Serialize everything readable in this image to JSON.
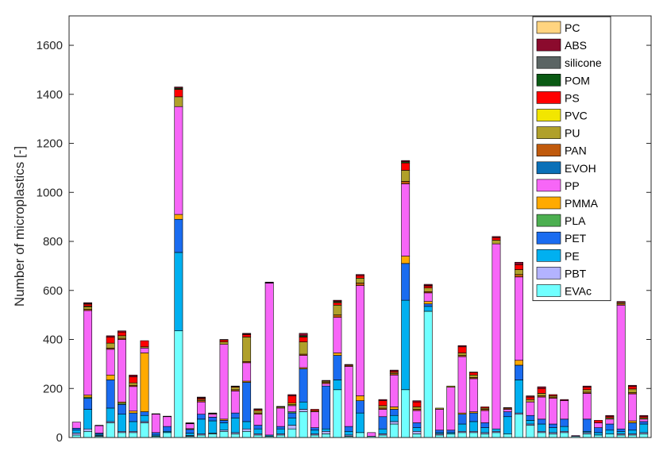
{
  "chart_data": {
    "type": "bar",
    "stacked": true,
    "xlabel": "",
    "ylabel": "Number of microplastics [-]",
    "ylim": [
      0,
      1720
    ],
    "yticks": [
      0,
      200,
      400,
      600,
      800,
      1000,
      1200,
      1400,
      1600
    ],
    "grid": false,
    "legend_position": "top-right",
    "stack_order": [
      "EVAc",
      "PBT",
      "PE",
      "PET",
      "PLA",
      "PMMA",
      "PP",
      "EVOH",
      "PAN",
      "PU",
      "PVC",
      "PS",
      "POM",
      "silicone",
      "ABS",
      "PC"
    ],
    "legend_order": [
      "PC",
      "ABS",
      "silicone",
      "POM",
      "PS",
      "PVC",
      "PU",
      "PAN",
      "EVOH",
      "PP",
      "PMMA",
      "PLA",
      "PET",
      "PE",
      "PBT",
      "EVAc"
    ],
    "colors": {
      "PC": "#ffd480",
      "ABS": "#8b0a2d",
      "silicone": "#5a6463",
      "POM": "#0a5a14",
      "PS": "#ff0000",
      "PVC": "#f2e600",
      "PU": "#b0a02a",
      "PAN": "#c05a0c",
      "EVOH": "#0a70b8",
      "PP": "#f766f7",
      "PMMA": "#ffaa00",
      "PLA": "#4caf50",
      "PET": "#1a6cf0",
      "PE": "#00b0f0",
      "PBT": "#b3b3ff",
      "EVAc": "#70ffff"
    },
    "bars": [
      {
        "EVAc": 10,
        "PBT": 8,
        "PE": 12,
        "PET": 8,
        "PP": 25
      },
      {
        "EVAc": 25,
        "PBT": 10,
        "PE": 80,
        "PET": 45,
        "PLA": 5,
        "PMMA": 8,
        "PP": 345,
        "PAN": 5,
        "PU": 10,
        "PVC": 3,
        "PS": 8,
        "silicone": 3,
        "ABS": 3
      },
      {
        "EVAc": 5,
        "PBT": 3,
        "PE": 5,
        "PET": 5,
        "PP": 30,
        "PS": 2
      },
      {
        "EVAc": 60,
        "PBT": 5,
        "PE": 55,
        "PET": 115,
        "PMMA": 20,
        "PP": 105,
        "PAN": 5,
        "PU": 20,
        "PS": 25,
        "ABS": 5
      },
      {
        "EVAc": 20,
        "PBT": 5,
        "PE": 70,
        "PET": 40,
        "PLA": 5,
        "PMMA": 5,
        "PP": 255,
        "PAN": 5,
        "PU": 10,
        "PS": 15,
        "ABS": 5
      },
      {
        "EVAc": 20,
        "PBT": 5,
        "PE": 40,
        "PET": 35,
        "PMMA": 8,
        "PP": 100,
        "PAN": 5,
        "PU": 10,
        "PS": 25,
        "ABS": 7
      },
      {
        "EVAc": 60,
        "PBT": 5,
        "PE": 25,
        "PET": 15,
        "PMMA": 240,
        "PP": 20,
        "PU": 5,
        "PS": 25
      },
      {
        "EVAc": 5,
        "PE": 5,
        "PET": 10,
        "PP": 75,
        "PS": 2
      },
      {
        "EVAc": 20,
        "PE": 5,
        "PET": 20,
        "PP": 40,
        "PS": 2
      },
      {
        "EVAc": 435,
        "PE": 320,
        "PET": 135,
        "PMMA": 20,
        "PP": 440,
        "PU": 40,
        "PS": 30,
        "POM": 5,
        "ABS": 5
      },
      {
        "EVAc": 5,
        "PBT": 3,
        "PE": 10,
        "PET": 15,
        "PMMA": 3,
        "PP": 20,
        "PU": 2,
        "PS": 2
      },
      {
        "EVAc": 10,
        "PBT": 5,
        "PE": 60,
        "PET": 20,
        "PP": 50,
        "PAN": 5,
        "PU": 5,
        "PS": 5,
        "POM": 2,
        "ABS": 3
      },
      {
        "EVAc": 15,
        "PBT": 3,
        "PE": 50,
        "PET": 15,
        "PP": 12,
        "PU": 3,
        "PS": 2
      },
      {
        "EVAc": 25,
        "PBT": 5,
        "PE": 30,
        "PET": 10,
        "PMMA": 5,
        "PP": 305,
        "PU": 10,
        "PS": 8,
        "ABS": 2
      },
      {
        "EVAc": 15,
        "PBT": 5,
        "PE": 60,
        "PET": 20,
        "PP": 90,
        "PAN": 5,
        "PU": 10,
        "PS": 3,
        "ABS": 2
      },
      {
        "EVAc": 25,
        "PBT": 10,
        "PE": 30,
        "PET": 160,
        "PMMA": 5,
        "PP": 75,
        "PAN": 5,
        "PU": 100,
        "PS": 10,
        "POM": 2,
        "ABS": 3
      },
      {
        "EVAc": 10,
        "PBT": 5,
        "PE": 20,
        "PET": 15,
        "PP": 45,
        "PAN": 5,
        "PU": 10,
        "PS": 5,
        "ABS": 2
      },
      {
        "EVAc": 5,
        "PE": 5,
        "PP": 620,
        "POM": 2,
        "ABS": 2
      },
      {
        "EVAc": 10,
        "PBT": 5,
        "PE": 20,
        "PET": 10,
        "PP": 75,
        "PU": 5,
        "ABS": 2
      },
      {
        "EVAc": 35,
        "PBT": 15,
        "PE": 30,
        "PET": 20,
        "PLA": 5,
        "PP": 25,
        "PU": 5,
        "PVC": 5,
        "PS": 30,
        "ABS": 5
      },
      {
        "EVAc": 105,
        "PBT": 10,
        "PE": 30,
        "PET": 135,
        "PMMA": 5,
        "PP": 50,
        "PAN": 5,
        "PU": 50,
        "PS": 20,
        "POM": 5,
        "ABS": 10
      },
      {
        "EVAc": 10,
        "PBT": 5,
        "PE": 15,
        "PET": 10,
        "PP": 65,
        "PAN": 5,
        "PS": 5
      },
      {
        "EVAc": 15,
        "PBT": 10,
        "PE": 10,
        "PET": 175,
        "PP": 10,
        "PAN": 5,
        "PU": 5,
        "ABS": 3
      },
      {
        "EVAc": 195,
        "PE": 40,
        "PET": 100,
        "PMMA": 10,
        "PP": 145,
        "PAN": 10,
        "PU": 40,
        "PS": 10,
        "POM": 5,
        "ABS": 5
      },
      {
        "EVAc": 5,
        "PBT": 5,
        "PE": 15,
        "PET": 20,
        "PP": 245,
        "PAN": 5,
        "ABS": 3
      },
      {
        "EVAc": 20,
        "PE": 80,
        "PET": 50,
        "PMMA": 20,
        "PP": 450,
        "PAN": 10,
        "PU": 20,
        "PS": 10,
        "ABS": 5
      },
      {
        "EVAc": 5,
        "PP": 15
      },
      {
        "EVAc": 10,
        "PBT": 5,
        "PE": 20,
        "PET": 50,
        "PP": 30,
        "PAN": 5,
        "PU": 10,
        "PS": 20,
        "ABS": 5
      },
      {
        "EVAc": 55,
        "PBT": 10,
        "PE": 25,
        "PET": 25,
        "PMMA": 10,
        "PP": 130,
        "PAN": 5,
        "PU": 5,
        "PS": 5,
        "ABS": 5
      },
      {
        "EVAc": 195,
        "PE": 365,
        "PET": 150,
        "PMMA": 30,
        "PP": 295,
        "PAN": 10,
        "PU": 45,
        "PS": 30,
        "POM": 5,
        "ABS": 5
      },
      {
        "EVAc": 15,
        "PBT": 10,
        "PE": 15,
        "PET": 20,
        "PP": 50,
        "PAN": 5,
        "PU": 10,
        "PS": 20,
        "ABS": 5
      },
      {
        "EVAc": 515,
        "PE": 20,
        "PET": 10,
        "PMMA": 10,
        "PP": 35,
        "PAN": 5,
        "PU": 15,
        "PS": 8,
        "POM": 2,
        "ABS": 5
      },
      {
        "EVAc": 10,
        "PBT": 5,
        "PE": 5,
        "PET": 10,
        "PP": 85,
        "PU": 5
      },
      {
        "EVAc": 15,
        "PE": 5,
        "PET": 10,
        "PP": 175,
        "PU": 5
      },
      {
        "EVAc": 20,
        "PBT": 5,
        "PE": 30,
        "PET": 40,
        "PMMA": 5,
        "PP": 230,
        "PAN": 5,
        "PU": 10,
        "PS": 25,
        "ABS": 5
      },
      {
        "EVAc": 20,
        "PBT": 5,
        "PE": 40,
        "PET": 35,
        "PMMA": 5,
        "PP": 135,
        "PAN": 5,
        "PU": 10,
        "PS": 10,
        "ABS": 2
      },
      {
        "EVAc": 15,
        "PBT": 5,
        "PE": 20,
        "PET": 20,
        "PP": 50,
        "PAN": 5,
        "PU": 5,
        "PS": 5
      },
      {
        "EVAc": 20,
        "PBT": 5,
        "PE": 10,
        "PP": 755,
        "PU": 15,
        "PS": 10,
        "ABS": 5
      },
      {
        "EVAc": 15,
        "PE": 70,
        "PET": 20,
        "PP": 10,
        "PAN": 5,
        "ABS": 2
      },
      {
        "EVAc": 95,
        "PBT": 5,
        "PE": 135,
        "PET": 60,
        "PMMA": 20,
        "PP": 340,
        "PAN": 10,
        "PU": 20,
        "PS": 20,
        "ABS": 10
      },
      {
        "EVAc": 50,
        "PBT": 5,
        "PE": 15,
        "PET": 20,
        "PP": 55,
        "PU": 10,
        "PS": 10,
        "ABS": 5
      },
      {
        "EVAc": 20,
        "PBT": 5,
        "PE": 30,
        "PET": 20,
        "PP": 90,
        "PAN": 5,
        "PU": 10,
        "PS": 20,
        "ABS": 7
      },
      {
        "EVAc": 15,
        "PBT": 5,
        "PE": 20,
        "PET": 15,
        "PP": 105,
        "PAN": 5,
        "PU": 5,
        "PS": 5
      },
      {
        "EVAc": 20,
        "PBT": 5,
        "PE": 20,
        "PET": 30,
        "PP": 75,
        "ABS": 5
      },
      {
        "EVAc": 5,
        "PP": 3
      },
      {
        "EVAc": 15,
        "PBT": 5,
        "PE": 5,
        "PET": 50,
        "PP": 105,
        "PAN": 5,
        "PU": 10,
        "PS": 10,
        "ABS": 5
      },
      {
        "EVAc": 10,
        "PE": 10,
        "PET": 20,
        "PP": 20,
        "PS": 10
      },
      {
        "EVAc": 15,
        "PE": 15,
        "PET": 25,
        "PP": 20,
        "PU": 5,
        "PS": 5,
        "ABS": 5
      },
      {
        "EVAc": 10,
        "PBT": 5,
        "PE": 10,
        "PET": 10,
        "PP": 505,
        "PAN": 5,
        "PU": 5,
        "ABS": 5
      },
      {
        "EVAc": 10,
        "PBT": 5,
        "PE": 15,
        "PET": 30,
        "PMMA": 8,
        "PP": 110,
        "PAN": 5,
        "PU": 15,
        "PS": 10,
        "ABS": 5
      },
      {
        "EVAc": 15,
        "PBT": 5,
        "PE": 35,
        "PET": 10,
        "PP": 10,
        "PU": 5,
        "PS": 5,
        "ABS": 5
      }
    ]
  }
}
